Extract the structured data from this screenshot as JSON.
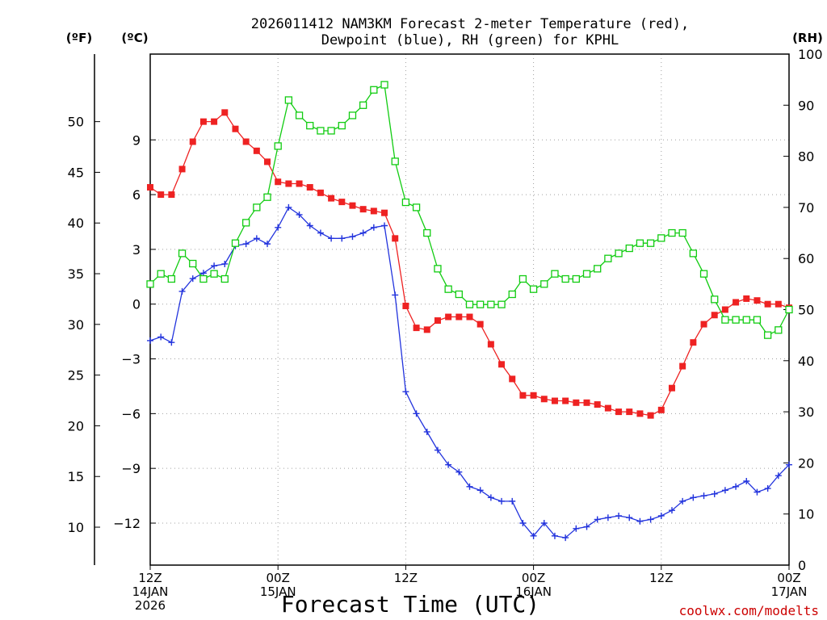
{
  "chart_data": {
    "type": "line",
    "title": "2026011412 NAM3KM Forecast 2-meter Temperature (red),",
    "title_line2": "Dewpoint (blue), RH (green) for KPHL",
    "xlabel": "Forecast Time (UTC)",
    "credit": "coolwx.com/modelts",
    "station": "KPHL",
    "init_time": "2026011412",
    "model": "NAM3KM",
    "units": {
      "fahrenheit": "(ºF)",
      "celsius": "(ºC)",
      "rh": "(RH)"
    },
    "x_range_hours": [
      0,
      60
    ],
    "x_ticks": [
      {
        "hour": 0,
        "lines": [
          "12Z",
          "14JAN",
          "2026"
        ]
      },
      {
        "hour": 12,
        "lines": [
          "00Z",
          "15JAN"
        ]
      },
      {
        "hour": 24,
        "lines": [
          "12Z"
        ]
      },
      {
        "hour": 36,
        "lines": [
          "00Z",
          "16JAN"
        ]
      },
      {
        "hour": 48,
        "lines": [
          "12Z"
        ]
      },
      {
        "hour": 60,
        "lines": [
          "00Z",
          "17JAN"
        ]
      }
    ],
    "ylim_celsius": [
      -14.3,
      13.7
    ],
    "ylim_rh": [
      0,
      100
    ],
    "yticks_celsius": [
      "9",
      "6",
      "3",
      "0",
      "−3",
      "−6",
      "−9",
      "−12"
    ],
    "yticks_celsius_values": [
      9,
      6,
      3,
      0,
      -3,
      -6,
      -9,
      -12
    ],
    "yticks_fahrenheit": [
      "50",
      "45",
      "40",
      "35",
      "30",
      "25",
      "20",
      "15",
      "10"
    ],
    "yticks_fahrenheit_values": [
      50,
      45,
      40,
      35,
      30,
      25,
      20,
      15,
      10
    ],
    "yticks_rh": [
      "100",
      "90",
      "80",
      "70",
      "60",
      "50",
      "40",
      "30",
      "20",
      "10",
      "0"
    ],
    "yticks_rh_values": [
      100,
      90,
      80,
      70,
      60,
      50,
      40,
      30,
      20,
      10,
      0
    ],
    "series": [
      {
        "name": "2-meter Temperature",
        "color": "#ee2222",
        "marker": "filled-square",
        "axis": "celsius",
        "x": [
          0,
          1,
          2,
          3,
          4,
          5,
          6,
          7,
          8,
          9,
          10,
          11,
          12,
          13,
          14,
          15,
          16,
          17,
          18,
          19,
          20,
          21,
          22,
          23,
          24,
          25,
          26,
          27,
          28,
          29,
          30,
          31,
          32,
          33,
          34,
          35,
          36,
          37,
          38,
          39,
          40,
          41,
          42,
          43,
          44,
          45,
          46,
          47,
          48,
          49,
          50,
          51,
          52,
          53,
          54,
          55,
          56,
          57,
          58,
          59,
          60
        ],
        "values": [
          6.4,
          6.0,
          6.0,
          7.4,
          8.9,
          10.0,
          10.0,
          10.5,
          9.6,
          8.9,
          8.4,
          7.8,
          6.7,
          6.6,
          6.6,
          6.4,
          6.1,
          5.8,
          5.6,
          5.4,
          5.2,
          5.1,
          5.0,
          3.6,
          -0.1,
          -1.3,
          -1.4,
          -0.9,
          -0.7,
          -0.7,
          -0.7,
          -1.1,
          -2.2,
          -3.3,
          -4.1,
          -5.0,
          -5.0,
          -5.2,
          -5.3,
          -5.3,
          -5.4,
          -5.4,
          -5.5,
          -5.7,
          -5.9,
          -5.9,
          -6.0,
          -6.1,
          -5.8,
          -4.6,
          -3.4,
          -2.1,
          -1.1,
          -0.6,
          -0.3,
          0.1,
          0.3,
          0.2,
          0.0,
          0.0,
          -0.2
        ]
      },
      {
        "name": "Dewpoint",
        "color": "#2233dd",
        "marker": "plus",
        "axis": "celsius",
        "x": [
          0,
          1,
          2,
          3,
          4,
          5,
          6,
          7,
          8,
          9,
          10,
          11,
          12,
          13,
          14,
          15,
          16,
          17,
          18,
          19,
          20,
          21,
          22,
          23,
          24,
          25,
          26,
          27,
          28,
          29,
          30,
          31,
          32,
          33,
          34,
          35,
          36,
          37,
          38,
          39,
          40,
          41,
          42,
          43,
          44,
          45,
          46,
          47,
          48,
          49,
          50,
          51,
          52,
          53,
          54,
          55,
          56,
          57,
          58,
          59,
          60
        ],
        "values": [
          -2.0,
          -1.8,
          -2.1,
          0.7,
          1.4,
          1.7,
          2.1,
          2.2,
          3.2,
          3.3,
          3.6,
          3.3,
          4.2,
          5.3,
          4.9,
          4.3,
          3.9,
          3.6,
          3.6,
          3.7,
          3.9,
          4.2,
          4.3,
          0.5,
          -4.8,
          -6.0,
          -7.0,
          -8.0,
          -8.8,
          -9.2,
          -10.0,
          -10.2,
          -10.6,
          -10.8,
          -10.8,
          -12.0,
          -12.7,
          -12.0,
          -12.7,
          -12.8,
          -12.3,
          -12.2,
          -11.8,
          -11.7,
          -11.6,
          -11.7,
          -11.9,
          -11.8,
          -11.6,
          -11.3,
          -10.8,
          -10.6,
          -10.5,
          -10.4,
          -10.2,
          -10.0,
          -9.7,
          -10.3,
          -10.1,
          -9.4,
          -8.8
        ]
      },
      {
        "name": "RH",
        "color": "#11cc11",
        "marker": "open-square",
        "axis": "rh",
        "x": [
          0,
          1,
          2,
          3,
          4,
          5,
          6,
          7,
          8,
          9,
          10,
          11,
          12,
          13,
          14,
          15,
          16,
          17,
          18,
          19,
          20,
          21,
          22,
          23,
          24,
          25,
          26,
          27,
          28,
          29,
          30,
          31,
          32,
          33,
          34,
          35,
          36,
          37,
          38,
          39,
          40,
          41,
          42,
          43,
          44,
          45,
          46,
          47,
          48,
          49,
          50,
          51,
          52,
          53,
          54,
          55,
          56,
          57,
          58,
          59,
          60
        ],
        "values": [
          55,
          57,
          56,
          61,
          59,
          56,
          57,
          56,
          63,
          67,
          70,
          72,
          82,
          91,
          88,
          86,
          85,
          85,
          86,
          88,
          90,
          93,
          94,
          79,
          71,
          70,
          65,
          58,
          54,
          53,
          51,
          51,
          51,
          51,
          53,
          56,
          54,
          55,
          57,
          56,
          56,
          57,
          58,
          60,
          61,
          62,
          63,
          63,
          64,
          65,
          65,
          61,
          57,
          52,
          48,
          48,
          48,
          48,
          45,
          46,
          50
        ]
      }
    ]
  }
}
